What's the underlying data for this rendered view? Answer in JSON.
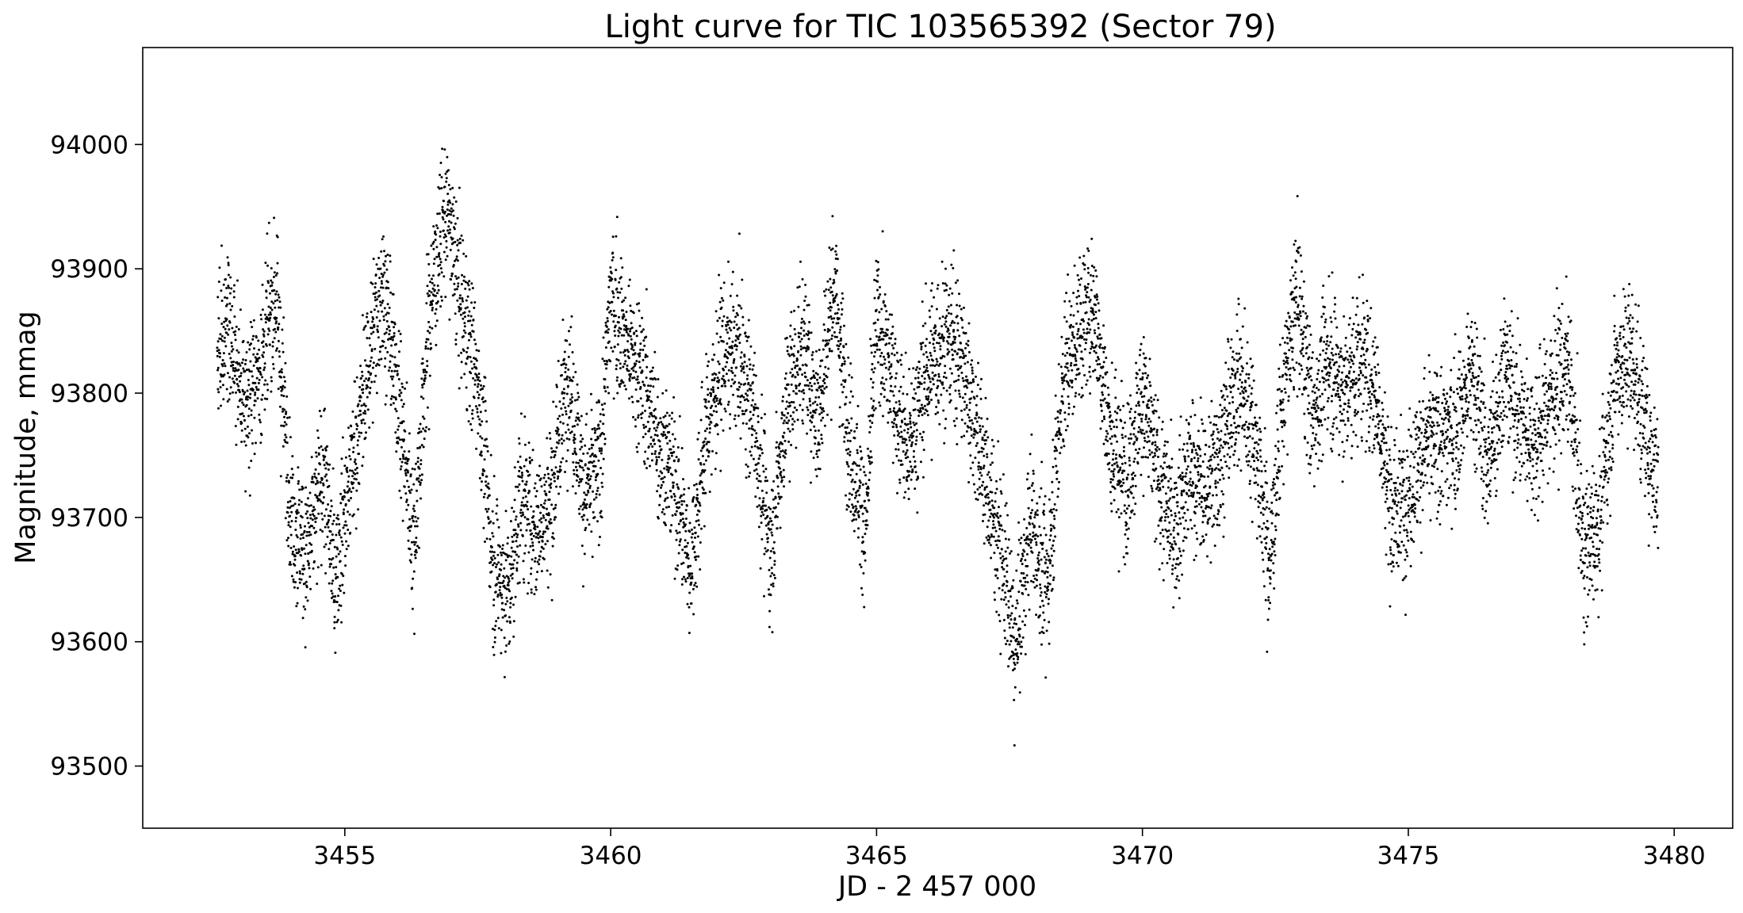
{
  "chart_data": {
    "type": "scatter",
    "title": "Light curve for TIC 103565392 (Sector 79)",
    "xlabel": "JD - 2 457 000",
    "ylabel": "Magnitude, mmag",
    "xlim": [
      3451.2,
      3481.1
    ],
    "ylim": [
      93450,
      94078
    ],
    "xticks": [
      3455,
      3460,
      3465,
      3470,
      3475,
      3480
    ],
    "yticks": [
      93500,
      93600,
      93700,
      93800,
      93900,
      94000
    ],
    "grid": false,
    "legend": "none",
    "marker_color": "#000000",
    "series": [
      {
        "x_range": [
          3452.6,
          3479.7
        ],
        "profile": [
          [
            3452.6,
            93835
          ],
          [
            3452.8,
            93860
          ],
          [
            3453.1,
            93790
          ],
          [
            3453.4,
            93820
          ],
          [
            3453.7,
            93880
          ],
          [
            3454.0,
            93700
          ],
          [
            3454.3,
            93670
          ],
          [
            3454.6,
            93740
          ],
          [
            3454.8,
            93650
          ],
          [
            3455.1,
            93730
          ],
          [
            3455.4,
            93810
          ],
          [
            3455.7,
            93890
          ],
          [
            3456.0,
            93800
          ],
          [
            3456.3,
            93680
          ],
          [
            3456.6,
            93870
          ],
          [
            3456.9,
            93950
          ],
          [
            3457.2,
            93870
          ],
          [
            3457.5,
            93810
          ],
          [
            3457.8,
            93660
          ],
          [
            3458.1,
            93640
          ],
          [
            3458.3,
            93720
          ],
          [
            3458.6,
            93690
          ],
          [
            3458.9,
            93720
          ],
          [
            3459.2,
            93820
          ],
          [
            3459.5,
            93720
          ],
          [
            3459.8,
            93740
          ],
          [
            3460.0,
            93880
          ],
          [
            3460.3,
            93840
          ],
          [
            3460.6,
            93810
          ],
          [
            3460.9,
            93760
          ],
          [
            3461.2,
            93730
          ],
          [
            3461.5,
            93660
          ],
          [
            3461.8,
            93770
          ],
          [
            3462.1,
            93830
          ],
          [
            3462.4,
            93830
          ],
          [
            3462.7,
            93780
          ],
          [
            3463.0,
            93670
          ],
          [
            3463.3,
            93790
          ],
          [
            3463.6,
            93840
          ],
          [
            3463.9,
            93780
          ],
          [
            3464.2,
            93890
          ],
          [
            3464.5,
            93760
          ],
          [
            3464.8,
            93690
          ],
          [
            3465.0,
            93860
          ],
          [
            3465.3,
            93810
          ],
          [
            3465.6,
            93750
          ],
          [
            3465.9,
            93810
          ],
          [
            3466.2,
            93840
          ],
          [
            3466.5,
            93840
          ],
          [
            3466.8,
            93790
          ],
          [
            3467.1,
            93720
          ],
          [
            3467.4,
            93660
          ],
          [
            3467.6,
            93590
          ],
          [
            3467.9,
            93700
          ],
          [
            3468.2,
            93640
          ],
          [
            3468.5,
            93810
          ],
          [
            3468.8,
            93850
          ],
          [
            3469.1,
            93870
          ],
          [
            3469.4,
            93760
          ],
          [
            3469.7,
            93730
          ],
          [
            3470.0,
            93800
          ],
          [
            3470.3,
            93730
          ],
          [
            3470.6,
            93690
          ],
          [
            3470.9,
            93740
          ],
          [
            3471.2,
            93720
          ],
          [
            3471.5,
            93760
          ],
          [
            3471.8,
            93810
          ],
          [
            3472.1,
            93770
          ],
          [
            3472.4,
            93660
          ],
          [
            3472.6,
            93780
          ],
          [
            3472.9,
            93880
          ],
          [
            3473.2,
            93780
          ],
          [
            3473.5,
            93830
          ],
          [
            3473.8,
            93800
          ],
          [
            3474.1,
            93830
          ],
          [
            3474.4,
            93800
          ],
          [
            3474.7,
            93700
          ],
          [
            3475.0,
            93720
          ],
          [
            3475.3,
            93760
          ],
          [
            3475.6,
            93760
          ],
          [
            3475.9,
            93770
          ],
          [
            3476.2,
            93820
          ],
          [
            3476.5,
            93740
          ],
          [
            3476.8,
            93820
          ],
          [
            3477.1,
            93780
          ],
          [
            3477.4,
            93760
          ],
          [
            3477.7,
            93800
          ],
          [
            3478.0,
            93820
          ],
          [
            3478.3,
            93670
          ],
          [
            3478.6,
            93700
          ],
          [
            3478.9,
            93820
          ],
          [
            3479.2,
            93830
          ],
          [
            3479.5,
            93760
          ],
          [
            3479.7,
            93730
          ]
        ],
        "scatter_mmag": 42,
        "n_points": 9000
      }
    ]
  }
}
